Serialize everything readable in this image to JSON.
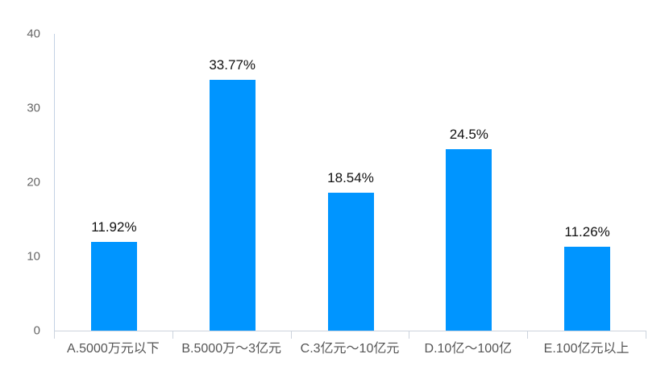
{
  "chart_data": {
    "type": "bar",
    "title": "",
    "xlabel": "",
    "ylabel": "",
    "categories": [
      "A.5000万元以下",
      "B.5000万～3亿元",
      "C.3亿元～10亿元",
      "D.10亿～100亿",
      "E.100亿元以上"
    ],
    "values": [
      11.92,
      33.77,
      18.54,
      24.5,
      11.26
    ],
    "value_labels": [
      "11.92%",
      "33.77%",
      "18.54%",
      "24.5%",
      "11.26%"
    ],
    "ylim": [
      0,
      40
    ],
    "yticks": [
      "0",
      "10",
      "20",
      "30",
      "40"
    ],
    "grid": false,
    "legend": false,
    "bar_color": "#0095ff",
    "axis_line_color": "#ccd3dd",
    "value_label_color": "#111111",
    "category_label_color": "#555555",
    "ytick_label_color": "#666666"
  }
}
